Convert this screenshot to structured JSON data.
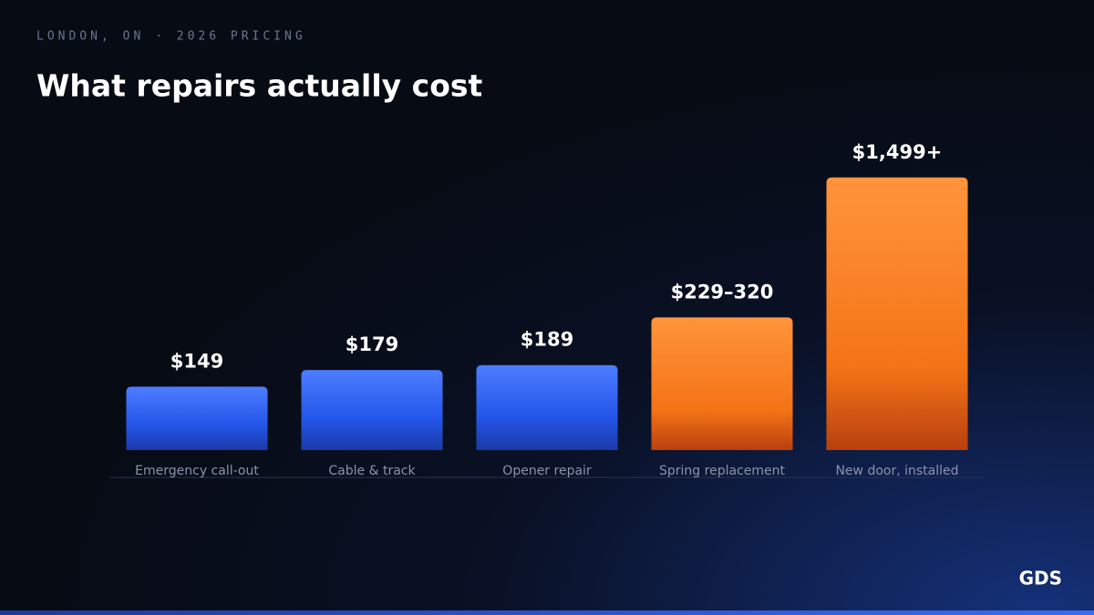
{
  "kicker": "LONDON, ON · 2026 PRICING",
  "brand": "GDS",
  "chart_data": {
    "type": "bar",
    "title": "What repairs actually cost",
    "categories": [
      "Emergency call-out",
      "Cable & track",
      "Opener repair",
      "Spring replacement",
      "New door, installed"
    ],
    "values": [
      149,
      179,
      189,
      320,
      1499
    ],
    "value_labels": [
      "$149",
      "$179",
      "$189",
      "$229–320",
      "$1,499+"
    ],
    "colors": [
      "blue",
      "blue",
      "blue",
      "orange",
      "orange"
    ],
    "log_scale": true
  }
}
